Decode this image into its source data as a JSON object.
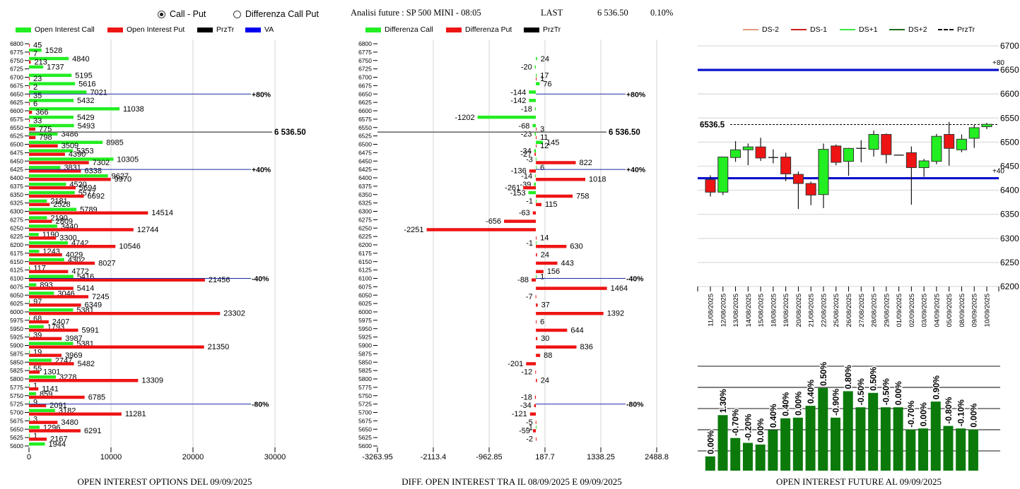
{
  "header": {
    "radio_options": [
      {
        "label": "Call - Put",
        "checked": true
      },
      {
        "label": "Differenza Call Put",
        "checked": false
      }
    ],
    "title": "Analisi future : SP 500 MINI - 08:05",
    "last_label": "LAST",
    "last_value": "6 536.50",
    "change_pct": "0.10%"
  },
  "chart_data": [
    {
      "type": "bar",
      "orientation": "horizontal",
      "title": "OPEN INTEREST OPTIONS DEL 09/09/2025",
      "xlabel": "",
      "ylabel": "Strike",
      "legend": [
        {
          "label": "Open Interest Call",
          "color": "#22ee22"
        },
        {
          "label": "Open Interest Put",
          "color": "#ee1414"
        },
        {
          "label": "PrzTr",
          "color": "#000000"
        },
        {
          "label": "VA",
          "color": "#0000ee"
        }
      ],
      "categories": [
        6800,
        6775,
        6750,
        6725,
        6700,
        6675,
        6650,
        6625,
        6600,
        6575,
        6550,
        6525,
        6500,
        6475,
        6450,
        6425,
        6400,
        6375,
        6350,
        6325,
        6300,
        6275,
        6250,
        6225,
        6200,
        6175,
        6150,
        6125,
        6100,
        6075,
        6050,
        6025,
        6000,
        5975,
        5950,
        5925,
        5900,
        5875,
        5850,
        5825,
        5800,
        5775,
        5750,
        5725,
        5700,
        5675,
        5650,
        5625,
        5600
      ],
      "series": [
        {
          "name": "Open Interest Call",
          "color": "#22ee22",
          "values": [
            0,
            1528,
            4840,
            1737,
            5195,
            5616,
            7021,
            5432,
            11038,
            5429,
            5493,
            3486,
            8985,
            5353,
            10305,
            3831,
            9627,
            4520,
            5577,
            2181,
            5789,
            2190,
            3440,
            1190,
            4742,
            1243,
            4302,
            117,
            5416,
            893,
            3046,
            97,
            5381,
            68,
            1793,
            39,
            5381,
            19,
            2747,
            55,
            3278,
            1,
            859,
            9,
            3182,
            3,
            1296,
            1,
            1944
          ]
        },
        {
          "name": "Open Interest Put",
          "color": "#ee1414",
          "values": [
            45,
            7,
            213,
            0,
            23,
            2,
            35,
            6,
            366,
            33,
            775,
            798,
            3509,
            4390,
            7302,
            6338,
            9970,
            5694,
            6692,
            2528,
            14514,
            2809,
            12744,
            3300,
            10546,
            4029,
            8027,
            4772,
            21456,
            5414,
            7245,
            6349,
            23302,
            2407,
            5991,
            3987,
            21350,
            3969,
            5482,
            1301,
            13309,
            1141,
            6785,
            2091,
            11281,
            3480,
            6291,
            2167,
            0
          ]
        }
      ],
      "xlim": [
        0,
        30000
      ],
      "xticks": [
        0,
        10000,
        20000,
        30000
      ],
      "grid": true,
      "przTr": {
        "value": 6536.5,
        "label": "6 536.50"
      },
      "va_levels": [
        {
          "strike": 6650,
          "label": "+80%"
        },
        {
          "strike": 6425,
          "label": "+40%"
        },
        {
          "strike": 6100,
          "label": "-40%"
        },
        {
          "strike": 5725,
          "label": "-80%"
        }
      ]
    },
    {
      "type": "bar",
      "orientation": "horizontal",
      "title": "DIFF. OPEN INTEREST TRA IL 08/09/2025 E 09/09/2025",
      "xlabel": "",
      "ylabel": "Strike",
      "legend": [
        {
          "label": "Differenza Call",
          "color": "#22ee22"
        },
        {
          "label": "Differenza Put",
          "color": "#ee1414"
        },
        {
          "label": "PrzTr",
          "color": "#000000"
        }
      ],
      "categories": [
        6800,
        6775,
        6750,
        6725,
        6700,
        6675,
        6650,
        6625,
        6600,
        6575,
        6550,
        6525,
        6500,
        6475,
        6450,
        6425,
        6400,
        6375,
        6350,
        6325,
        6300,
        6275,
        6250,
        6225,
        6200,
        6175,
        6150,
        6125,
        6100,
        6075,
        6050,
        6025,
        6000,
        5975,
        5950,
        5925,
        5900,
        5875,
        5850,
        5825,
        5800,
        5775,
        5750,
        5725,
        5700,
        5675,
        5650,
        5625,
        5600
      ],
      "series": [
        {
          "name": "Differenza Call",
          "color": "#22ee22",
          "values": [
            0,
            0,
            24,
            -20,
            17,
            76,
            -144,
            -142,
            -18,
            -1202,
            -68,
            -23,
            145,
            -34,
            -3,
            6,
            -14,
            -39,
            -153,
            -1,
            0,
            0,
            0,
            0,
            -1,
            0,
            0,
            0,
            1,
            0,
            0,
            0,
            0,
            0,
            0,
            0,
            0,
            0,
            0,
            0,
            0,
            0,
            0,
            0,
            0,
            0,
            -1,
            0,
            0
          ]
        },
        {
          "name": "Differenza Put",
          "color": "#ee1414",
          "values": [
            0,
            0,
            0,
            0,
            1,
            0,
            0,
            0,
            0,
            0,
            3,
            11,
            12,
            -27,
            822,
            -136,
            1018,
            -261,
            758,
            115,
            -63,
            -656,
            -2251,
            14,
            630,
            24,
            443,
            156,
            -88,
            1464,
            -7,
            37,
            1392,
            6,
            644,
            30,
            836,
            88,
            -201,
            -12,
            24,
            0,
            -18,
            -34,
            -121,
            -5,
            -59,
            -2,
            0
          ]
        }
      ],
      "xlim": [
        -3263.95,
        2488.8
      ],
      "xticks": [
        -3263.95,
        -2113.4,
        -962.85,
        187.7,
        1338.25,
        2488.8
      ],
      "grid": true,
      "przTr": {
        "value": 6536.5,
        "label": "6 536.50"
      },
      "va_levels": [
        {
          "strike": 6650,
          "label": "+80%"
        },
        {
          "strike": 6425,
          "label": "+40%"
        },
        {
          "strike": 6100,
          "label": "-40%"
        },
        {
          "strike": 5725,
          "label": "-80%"
        }
      ]
    },
    {
      "type": "candlestick",
      "title": "",
      "legend": [
        {
          "label": "DS-2",
          "color": "#e39a80",
          "style": "solid"
        },
        {
          "label": "DS-1",
          "color": "#cc1f1f",
          "style": "solid"
        },
        {
          "label": "DS+1",
          "color": "#3fe83f",
          "style": "solid"
        },
        {
          "label": "DS+2",
          "color": "#1c6b1c",
          "style": "solid"
        },
        {
          "label": "PrzTr",
          "color": "#000000",
          "style": "dashed"
        }
      ],
      "up_color": "#22ee22",
      "down_color": "#ee1414",
      "x": [
        "11/08/2025",
        "12/08/2025",
        "13/08/2025",
        "14/08/2025",
        "15/08/2025",
        "18/08/2025",
        "19/08/2025",
        "20/08/2025",
        "21/08/2025",
        "22/08/2025",
        "25/08/2025",
        "26/08/2025",
        "27/08/2025",
        "28/08/2025",
        "29/08/2025",
        "01/09/2025",
        "02/09/2025",
        "03/09/2025",
        "04/09/2025",
        "05/09/2025",
        "08/09/2025",
        "09/09/2025",
        "10/09/2025"
      ],
      "series": [
        {
          "name": "SP 500 MINI",
          "ohlc_fields": [
            "open",
            "high",
            "low",
            "close"
          ],
          "ohlc": [
            [
              6422,
              6431,
              6387,
              6396
            ],
            [
              6396,
              6470,
              6390,
              6469
            ],
            [
              6468,
              6502,
              6459,
              6484
            ],
            [
              6484,
              6497,
              6452,
              6490
            ],
            [
              6490,
              6509,
              6461,
              6467
            ],
            [
              6467,
              6485,
              6456,
              6468
            ],
            [
              6469,
              6478,
              6419,
              6434
            ],
            [
              6433,
              6439,
              6361,
              6414
            ],
            [
              6414,
              6418,
              6369,
              6390
            ],
            [
              6391,
              6497,
              6363,
              6485
            ],
            [
              6492,
              6495,
              6452,
              6458
            ],
            [
              6460,
              6488,
              6430,
              6487
            ],
            [
              6486,
              6504,
              6458,
              6487
            ],
            [
              6485,
              6524,
              6470,
              6516
            ],
            [
              6516,
              6518,
              6456,
              6474
            ],
            [
              6473,
              6473,
              6473,
              6473
            ],
            [
              6478,
              6491,
              6370,
              6447
            ],
            [
              6447,
              6465,
              6428,
              6461
            ],
            [
              6460,
              6517,
              6454,
              6512
            ],
            [
              6516,
              6542,
              6451,
              6487
            ],
            [
              6484,
              6516,
              6479,
              6506
            ],
            [
              6508,
              6536,
              6488,
              6530
            ],
            [
              6532,
              6540,
              6527,
              6537
            ]
          ]
        }
      ],
      "ylim": [
        6200,
        6700
      ],
      "yticks": [
        6700,
        6650,
        6600,
        6550,
        6500,
        6450,
        6400,
        6350,
        6300,
        6250,
        6200
      ],
      "grid": true,
      "przTr": {
        "value": 6536.5,
        "label": "6536.5"
      },
      "levels": [
        {
          "value": 6650,
          "label": "+80",
          "color": "#0a12cc"
        },
        {
          "value": 6425,
          "label": "+40",
          "color": "#0a12cc"
        }
      ]
    },
    {
      "type": "bar",
      "title": "OPEN INTEREST FUTURE AL 09/09/2025",
      "xlabel": "",
      "ylabel": "",
      "note": "relative open-interest level (no y-axis labels shown)",
      "color": "#0b7a0b",
      "values": [
        0.74,
        2.69,
        1.61,
        1.38,
        1.3,
        1.99,
        2.54,
        2.57,
        3.13,
        3.97,
        2.57,
        3.82,
        3.06,
        3.74,
        3.06,
        3.06,
        2.01,
        2.06,
        3.33,
        2.18,
        2.06,
        2.01
      ],
      "labels": [
        "0.00%",
        "1.30%",
        "-0.70%",
        "-0.20%",
        "0.00%",
        "0.40%",
        "0.40%",
        "0.00%",
        "0.40%",
        "0.50%",
        "-0.90%",
        "0.80%",
        "-0.50%",
        "0.50%",
        "-0.50%",
        "0.00%",
        "-0.70%",
        "0.00%",
        "0.90%",
        "-0.80%",
        "-0.10%",
        "0.00%"
      ],
      "gridlines": [
        1,
        2,
        3,
        4,
        5
      ],
      "ylim": [
        0,
        5.5
      ]
    }
  ]
}
